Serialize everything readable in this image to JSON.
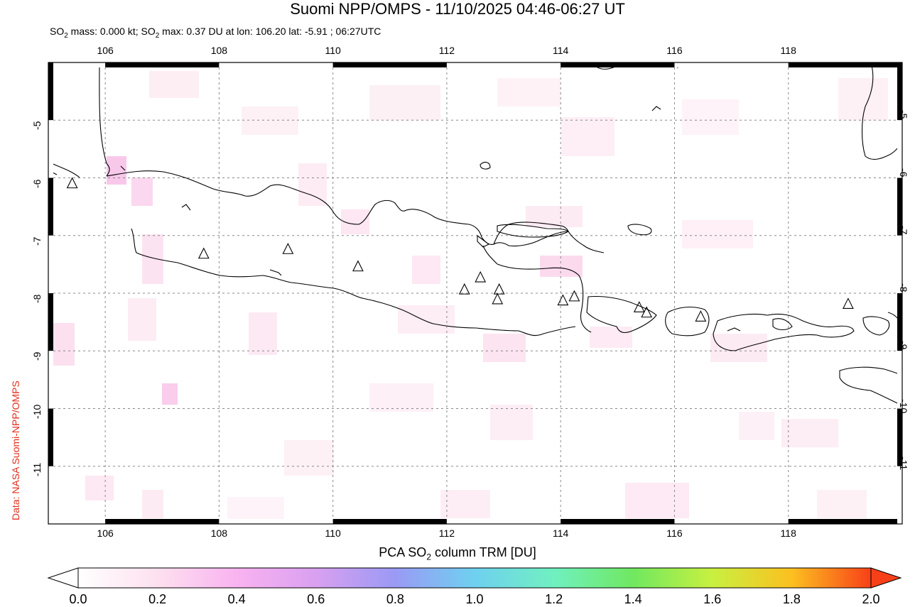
{
  "header": {
    "title": "Suomi NPP/OMPS - 11/10/2025 04:46-06:27 UT",
    "subtitle_part1": "SO",
    "subtitle_sub": "2",
    "subtitle_part2": " mass: 0.000 kt; SO",
    "subtitle_sub2": "2",
    "subtitle_part3": " max: 0.37 DU at lon: 106.20 lat: -5.91 ; 06:27UTC"
  },
  "side_credit": "Data: NASA Suomi-NPP/OMPS",
  "map": {
    "lon_ticks": [
      "106",
      "108",
      "110",
      "112",
      "114",
      "116",
      "118"
    ],
    "lon_values": [
      106,
      108,
      110,
      112,
      114,
      116,
      118
    ],
    "lat_ticks": [
      "-5",
      "-6",
      "-7",
      "-8",
      "-9",
      "-10",
      "-11"
    ],
    "lat_values": [
      -5,
      -6,
      -7,
      -8,
      -9,
      -10,
      -11
    ],
    "lon_range": [
      105.0,
      120.0
    ],
    "lat_range": [
      -12.0,
      -4.0
    ],
    "grid": true,
    "volcanoes": [
      {
        "lon": 105.42,
        "lat": -6.1
      },
      {
        "lon": 107.73,
        "lat": -7.32
      },
      {
        "lon": 109.21,
        "lat": -7.24
      },
      {
        "lon": 110.44,
        "lat": -7.54
      },
      {
        "lon": 112.31,
        "lat": -7.94
      },
      {
        "lon": 112.59,
        "lat": -7.73
      },
      {
        "lon": 112.92,
        "lat": -7.94
      },
      {
        "lon": 112.89,
        "lat": -8.11
      },
      {
        "lon": 114.04,
        "lat": -8.13
      },
      {
        "lon": 114.24,
        "lat": -8.06
      },
      {
        "lon": 115.38,
        "lat": -8.25
      },
      {
        "lon": 115.51,
        "lat": -8.34
      },
      {
        "lon": 116.46,
        "lat": -8.41
      },
      {
        "lon": 119.05,
        "lat": -8.19
      }
    ]
  },
  "colorbar": {
    "title_part1": "PCA SO",
    "title_sub": "2",
    "title_part2": " column TRM [DU]",
    "labels": [
      "0.0",
      "0.2",
      "0.4",
      "0.6",
      "0.8",
      "1.0",
      "1.2",
      "1.4",
      "1.6",
      "1.8",
      "2.0"
    ],
    "colors": [
      "#ffffff",
      "#fde0ef",
      "#f9b3f0",
      "#d9a0f0",
      "#9a9af5",
      "#6fd0f0",
      "#70f0c0",
      "#70e860",
      "#c8f040",
      "#fcc020",
      "#f84018"
    ]
  }
}
